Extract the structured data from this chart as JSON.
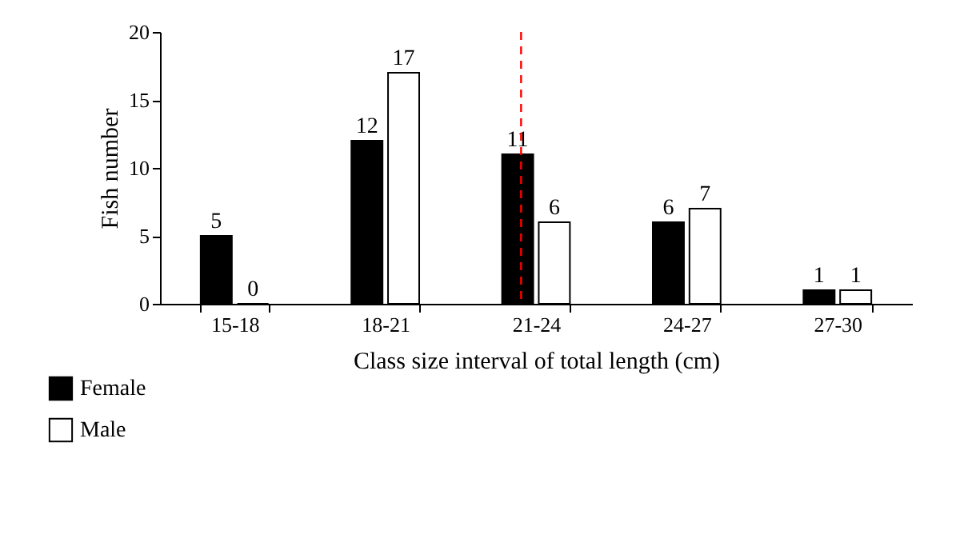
{
  "chart_data": {
    "type": "bar",
    "xlabel": "Class size interval of total length (cm)",
    "ylabel": "Fish number",
    "categories": [
      "15-18",
      "18-21",
      "21-24",
      "24-27",
      "27-30"
    ],
    "series": [
      {
        "name": "Female",
        "color": "#000000",
        "values": [
          5,
          12,
          11,
          6,
          1
        ]
      },
      {
        "name": "Male",
        "color": "#ffffff",
        "values": [
          0,
          17,
          6,
          7,
          1
        ]
      }
    ],
    "ylim": [
      0,
      20
    ],
    "yticks": [
      0,
      5,
      10,
      15,
      20
    ],
    "grid": false,
    "data_labels": true,
    "legend": "bottom left",
    "ref_lines": [
      {
        "axis": "x",
        "value": "21-24",
        "color": "#ff0000",
        "line_style": "dashed"
      }
    ]
  }
}
